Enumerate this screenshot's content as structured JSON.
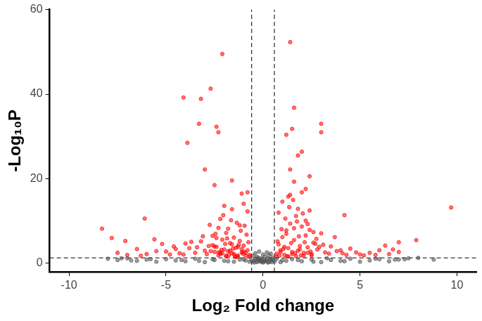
{
  "chart_data": {
    "type": "scatter",
    "x_label": "Log₂ Fold change",
    "y_label": "-Log₁₀P",
    "xlim": [
      -11,
      11
    ],
    "xticks": [
      -10,
      -5,
      0,
      5,
      10
    ],
    "ylim": [
      -2,
      60
    ],
    "yticks": [
      0,
      20,
      40,
      60
    ],
    "grid": false,
    "x_thresholds": [
      -0.585,
      0.585
    ],
    "y_threshold": 1.3,
    "series": [
      {
        "color": "#505050",
        "x": [
          -8.0,
          -7.5,
          -7.0,
          -6.5,
          -6.0,
          -5.5,
          -5.0,
          -4.5,
          -4.0,
          -3.5,
          -3.0,
          -2.5,
          -2.0,
          -1.5,
          -1.0,
          -0.5,
          -0.4,
          -0.3,
          -0.2,
          -0.1,
          0.0,
          0.1,
          0.2,
          0.3,
          0.4,
          0.5,
          1.0,
          1.5,
          2.0,
          2.5,
          3.0,
          3.5,
          4.0,
          4.5,
          5.0,
          5.5,
          6.0,
          6.5,
          7.0,
          7.5,
          8.0,
          8.8,
          -0.5,
          -0.4,
          -0.3,
          -0.2,
          -0.1,
          0.0,
          0.1,
          0.2,
          0.3,
          0.4,
          0.5,
          -0.45,
          -0.35,
          -0.25,
          -0.15,
          -0.05,
          0.05,
          0.15,
          0.25,
          0.35,
          0.45,
          -0.6,
          0.6,
          -0.7,
          0.7,
          -0.9,
          0.9,
          -1.2,
          1.2,
          -1.8,
          1.8,
          -2.6,
          2.6,
          -3.3,
          3.3,
          -4.2,
          4.2,
          -5.8,
          5.8,
          -6.8,
          6.8,
          -7.3,
          7.3
        ],
        "values": [
          1.1,
          0.8,
          1.2,
          0.6,
          0.9,
          0.4,
          1.0,
          0.7,
          0.5,
          1.1,
          0.3,
          0.8,
          0.6,
          0.4,
          0.9,
          1.8,
          2.4,
          1.5,
          2.8,
          1.2,
          2.1,
          1.6,
          2.6,
          1.9,
          2.3,
          1.4,
          0.7,
          1.0,
          0.5,
          0.9,
          0.3,
          0.8,
          0.6,
          1.1,
          0.4,
          0.7,
          1.0,
          0.5,
          0.9,
          1.2,
          1.3,
          0.9,
          0.5,
          1.0,
          0.3,
          0.8,
          0.4,
          0.2,
          0.6,
          1.1,
          0.3,
          0.7,
          0.9,
          0.2,
          0.6,
          1.3,
          0.5,
          0.9,
          0.4,
          0.7,
          0.2,
          1.0,
          0.3,
          0.8,
          0.5,
          0.4,
          1.1,
          0.7,
          0.3,
          0.9,
          0.6,
          0.5,
          0.8,
          1.0,
          0.4,
          0.6,
          1.2,
          0.8,
          0.5,
          1.0,
          1.1,
          0.7,
          0.9,
          1.2,
          1.0
        ]
      },
      {
        "color": "#ff0000",
        "x": [
          -0.7,
          -0.8,
          -0.9,
          -1.0,
          -1.1,
          -1.2,
          -1.3,
          -1.4,
          -1.5,
          -1.6,
          -1.7,
          -1.8,
          -1.9,
          -2.0,
          -2.1,
          -2.2,
          -2.3,
          -2.4,
          -2.5,
          -2.6,
          -2.8,
          -3.0,
          -3.2,
          -3.5,
          -3.8,
          -4.1,
          -4.5,
          -5.0,
          -0.75,
          -0.85,
          -0.95,
          -1.05,
          -1.15,
          -1.25,
          -1.35,
          -1.45,
          -1.55,
          -1.65,
          -1.75,
          -1.85,
          -1.95,
          -2.05,
          -2.15,
          -2.3,
          -2.45,
          -2.6,
          -2.75,
          -2.9,
          -3.1,
          -3.4,
          -3.7,
          -4.0,
          -4.3,
          -0.7,
          -0.9,
          -1.1,
          -1.3,
          -1.5,
          -1.7,
          -1.9,
          -2.1,
          -2.3,
          -2.5,
          -2.7,
          -0.8,
          -1.0,
          -1.2,
          -1.4,
          -1.6,
          -1.8,
          -2.0,
          -2.2,
          -2.4,
          -1.0,
          -1.3,
          -1.6,
          -1.9,
          -2.2,
          -5.5,
          -6.0,
          -6.5,
          -7.0,
          -7.5,
          -5.2,
          -4.8,
          -6.3,
          -2.1,
          -4.1,
          -2.7,
          -3.2,
          -3.3,
          -3.9,
          -2.4,
          -2.3,
          -3.0,
          -2.5,
          -1.6,
          -1.1,
          -0.8,
          -8.3,
          -6.1,
          -7.8,
          -7.1,
          -5.6,
          -4.6,
          0.7,
          0.8,
          0.9,
          1.0,
          1.1,
          1.2,
          1.3,
          1.4,
          1.5,
          1.6,
          1.7,
          1.8,
          1.9,
          2.0,
          2.1,
          2.2,
          2.3,
          2.4,
          2.5,
          2.6,
          2.8,
          3.0,
          3.2,
          3.5,
          3.8,
          4.1,
          4.5,
          5.0,
          0.75,
          0.85,
          0.95,
          1.05,
          1.15,
          1.25,
          1.35,
          1.45,
          1.55,
          1.65,
          1.75,
          1.85,
          1.95,
          2.05,
          2.15,
          2.3,
          2.45,
          2.6,
          2.75,
          2.9,
          3.1,
          3.4,
          3.7,
          4.0,
          4.3,
          0.7,
          0.9,
          1.1,
          1.3,
          1.5,
          1.7,
          1.9,
          2.1,
          2.3,
          2.5,
          2.7,
          0.8,
          1.0,
          1.2,
          1.4,
          1.6,
          1.8,
          2.0,
          2.2,
          2.4,
          5.5,
          6.0,
          6.5,
          7.0,
          5.2,
          5.8,
          6.7,
          4.8,
          1.4,
          1.6,
          1.5,
          3.0,
          3.0,
          1.2,
          2.0,
          1.8,
          1.4,
          2.4,
          1.6,
          2.2,
          9.7,
          4.2,
          7.9,
          7.0,
          6.3,
          1.3
        ],
        "values": [
          2.0,
          3.1,
          1.8,
          4.2,
          2.6,
          5.3,
          1.9,
          3.7,
          6.1,
          2.4,
          4.8,
          2.9,
          7.2,
          3.3,
          5.6,
          2.2,
          8.4,
          3.9,
          2.7,
          6.5,
          4.1,
          3.0,
          5.2,
          2.5,
          3.6,
          2.1,
          3.4,
          2.8,
          5.0,
          6.8,
          8.9,
          2.3,
          7.7,
          4.4,
          9.6,
          1.7,
          3.5,
          10.2,
          2.0,
          5.9,
          4.6,
          11.4,
          3.2,
          2.6,
          7.0,
          4.3,
          9.1,
          2.2,
          6.4,
          3.8,
          5.1,
          4.7,
          2.4,
          1.6,
          2.5,
          3.4,
          1.6,
          2.2,
          3.0,
          1.7,
          2.4,
          1.9,
          4.0,
          2.9,
          12.3,
          14.1,
          9.0,
          1.5,
          12.8,
          8.2,
          13.6,
          10.5,
          6.0,
          2.8,
          3.9,
          4.5,
          1.8,
          2.6,
          2.9,
          2.2,
          3.4,
          2.0,
          2.5,
          4.6,
          2.1,
          1.8,
          49.5,
          39.2,
          41.3,
          38.9,
          33.0,
          28.5,
          32.3,
          31.0,
          22.2,
          18.5,
          19.6,
          16.5,
          16.8,
          8.2,
          10.6,
          6.0,
          5.3,
          5.7,
          4.0,
          2.3,
          4.5,
          3.1,
          6.2,
          2.0,
          7.8,
          3.6,
          9.4,
          2.7,
          5.5,
          11.2,
          3.0,
          4.1,
          8.7,
          2.5,
          6.6,
          3.8,
          12.5,
          2.2,
          4.9,
          3.3,
          7.1,
          2.6,
          4.0,
          2.9,
          2.4,
          3.5,
          2.1,
          5.2,
          1.8,
          8.1,
          3.4,
          10.6,
          1.7,
          13.3,
          4.8,
          15.0,
          2.4,
          9.9,
          6.4,
          1.9,
          11.8,
          5.0,
          9.3,
          2.8,
          7.4,
          5.8,
          3.9,
          4.4,
          2.3,
          6.2,
          3.1,
          2.0,
          1.6,
          2.7,
          3.9,
          1.6,
          2.2,
          1.7,
          3.3,
          1.8,
          2.5,
          1.9,
          4.6,
          12.0,
          14.6,
          7.0,
          16.2,
          8.3,
          12.9,
          16.8,
          10.1,
          7.9,
          2.5,
          3.1,
          2.2,
          2.7,
          1.9,
          2.0,
          3.3,
          2.6,
          52.3,
          36.8,
          31.8,
          33.0,
          31.0,
          30.4,
          26.4,
          25.5,
          22.2,
          20.6,
          19.3,
          17.6,
          13.2,
          11.4,
          5.5,
          5.0,
          4.2,
          15.8
        ]
      }
    ]
  }
}
